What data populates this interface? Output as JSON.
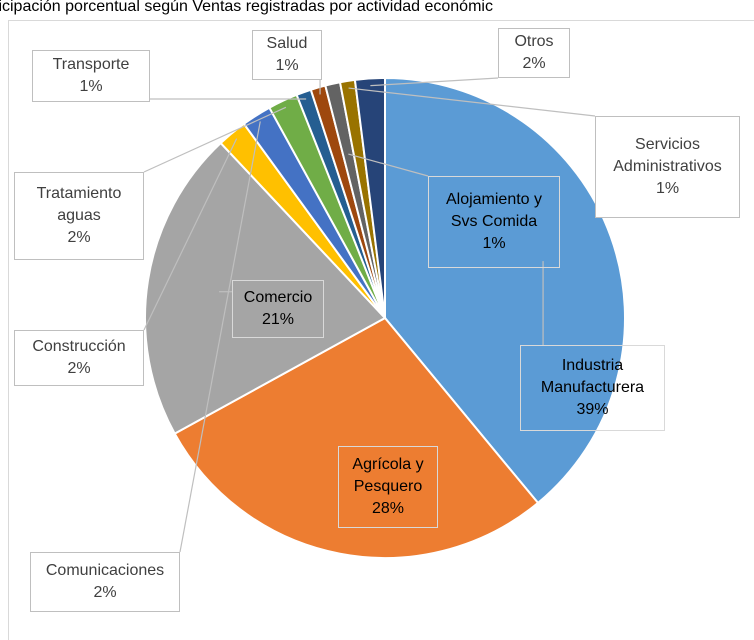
{
  "chart_data": {
    "type": "pie",
    "title": "ticipación porcentual según Ventas registradas por actividad económic",
    "categories": [
      "Industria Manufacturera",
      "Agrícola y Pesquero",
      "Comercio",
      "Construcción",
      "Comunicaciones",
      "Tratamiento aguas",
      "Transporte",
      "Salud",
      "Alojamiento y Svs Comida",
      "Servicios Administrativos",
      "Otros"
    ],
    "values": [
      39,
      28,
      21,
      2,
      2,
      2,
      1,
      1,
      1,
      1,
      2
    ],
    "value_labels": [
      "39%",
      "28%",
      "21%",
      "2%",
      "2%",
      "2%",
      "1%",
      "1%",
      "1%",
      "1%",
      "2%"
    ],
    "colors": [
      "#5b9bd5",
      "#ed7d31",
      "#a5a5a5",
      "#ffc000",
      "#4472c4",
      "#70ad47",
      "#255e91",
      "#9e480e",
      "#636363",
      "#997300",
      "#264478"
    ]
  }
}
